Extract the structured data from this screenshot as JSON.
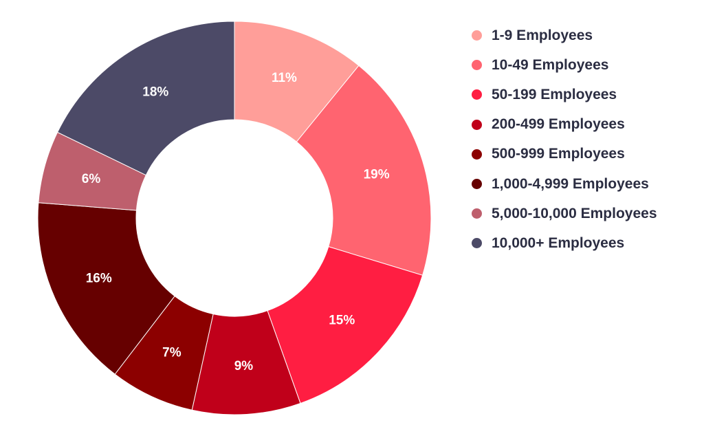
{
  "chart_data": {
    "type": "pie",
    "donut": true,
    "categories": [
      "1-9 Employees",
      "10-49 Employees",
      "50-199 Employees",
      "200-499 Employees",
      "500-999 Employees",
      "1,000-4,999 Employees",
      "5,000-10,000 Employees",
      "10,000+ Employees"
    ],
    "values": [
      11,
      19,
      15,
      9,
      7,
      16,
      6,
      18
    ],
    "value_labels": [
      "11%",
      "19%",
      "15%",
      "9%",
      "7%",
      "16%",
      "6%",
      "18%"
    ],
    "colors": [
      "#ff9e99",
      "#ff6470",
      "#ff1e42",
      "#c0001a",
      "#8c0000",
      "#660000",
      "#be5f6d",
      "#4c4a67"
    ],
    "legend_position": "right"
  }
}
